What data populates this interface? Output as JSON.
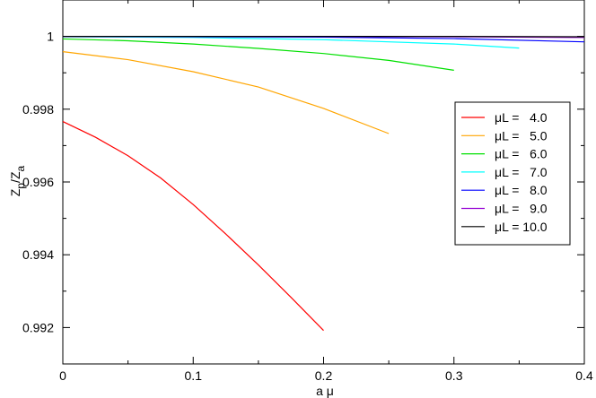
{
  "chart_data": {
    "type": "line",
    "title": "",
    "xlabel": "a μ",
    "ylabel_main": "Z",
    "ylabel_sub1": "p",
    "ylabel_mid": "/Z",
    "ylabel_sub2": "a",
    "xlim": [
      0,
      0.4
    ],
    "ylim": [
      0.991,
      1.001
    ],
    "xticks": [
      0,
      0.1,
      0.2,
      0.3,
      0.4
    ],
    "xtick_labels": [
      "0",
      "0.1",
      "0.2",
      "0.3",
      "0.4"
    ],
    "yticks": [
      0.992,
      0.994,
      0.996,
      0.998,
      1.0
    ],
    "ytick_labels": [
      "0.992",
      "0.994",
      "0.996",
      "0.998",
      "1"
    ],
    "grid": false,
    "legend_position": "right",
    "series": [
      {
        "name": "μL =   4.0",
        "color": "#ff0000",
        "x": [
          0,
          0.025,
          0.05,
          0.075,
          0.1,
          0.125,
          0.15,
          0.175,
          0.2
        ],
        "y": [
          0.99766,
          0.99723,
          0.99672,
          0.99611,
          0.99538,
          0.99457,
          0.99372,
          0.99283,
          0.99192
        ]
      },
      {
        "name": "μL =   5.0",
        "color": "#ffa500",
        "x": [
          0,
          0.05,
          0.1,
          0.15,
          0.2,
          0.25
        ],
        "y": [
          0.99958,
          0.99936,
          0.99903,
          0.99861,
          0.99802,
          0.99733
        ]
      },
      {
        "name": "μL =   6.0",
        "color": "#00e000",
        "x": [
          0,
          0.05,
          0.1,
          0.15,
          0.2,
          0.25,
          0.3
        ],
        "y": [
          0.99993,
          0.99988,
          0.99979,
          0.99967,
          0.99953,
          0.99934,
          0.99907
        ]
      },
      {
        "name": "μL =   7.0",
        "color": "#00ffff",
        "x": [
          0,
          0.1,
          0.2,
          0.3,
          0.35
        ],
        "y": [
          0.99999,
          0.99997,
          0.99991,
          0.99979,
          0.99968
        ]
      },
      {
        "name": "μL =   8.0",
        "color": "#0000ff",
        "x": [
          0,
          0.1,
          0.2,
          0.3,
          0.4
        ],
        "y": [
          1.0,
          0.99999,
          0.99998,
          0.99994,
          0.99985
        ]
      },
      {
        "name": "μL =   9.0",
        "color": "#9400d3",
        "x": [
          0,
          0.1,
          0.2,
          0.3,
          0.4
        ],
        "y": [
          1.0,
          1.0,
          1.0,
          0.99999,
          0.99997
        ]
      },
      {
        "name": "μL = 10.0",
        "color": "#000000",
        "x": [
          0,
          0.1,
          0.2,
          0.3,
          0.4
        ],
        "y": [
          1.0,
          1.0,
          1.0,
          1.0,
          0.99999
        ]
      }
    ]
  }
}
